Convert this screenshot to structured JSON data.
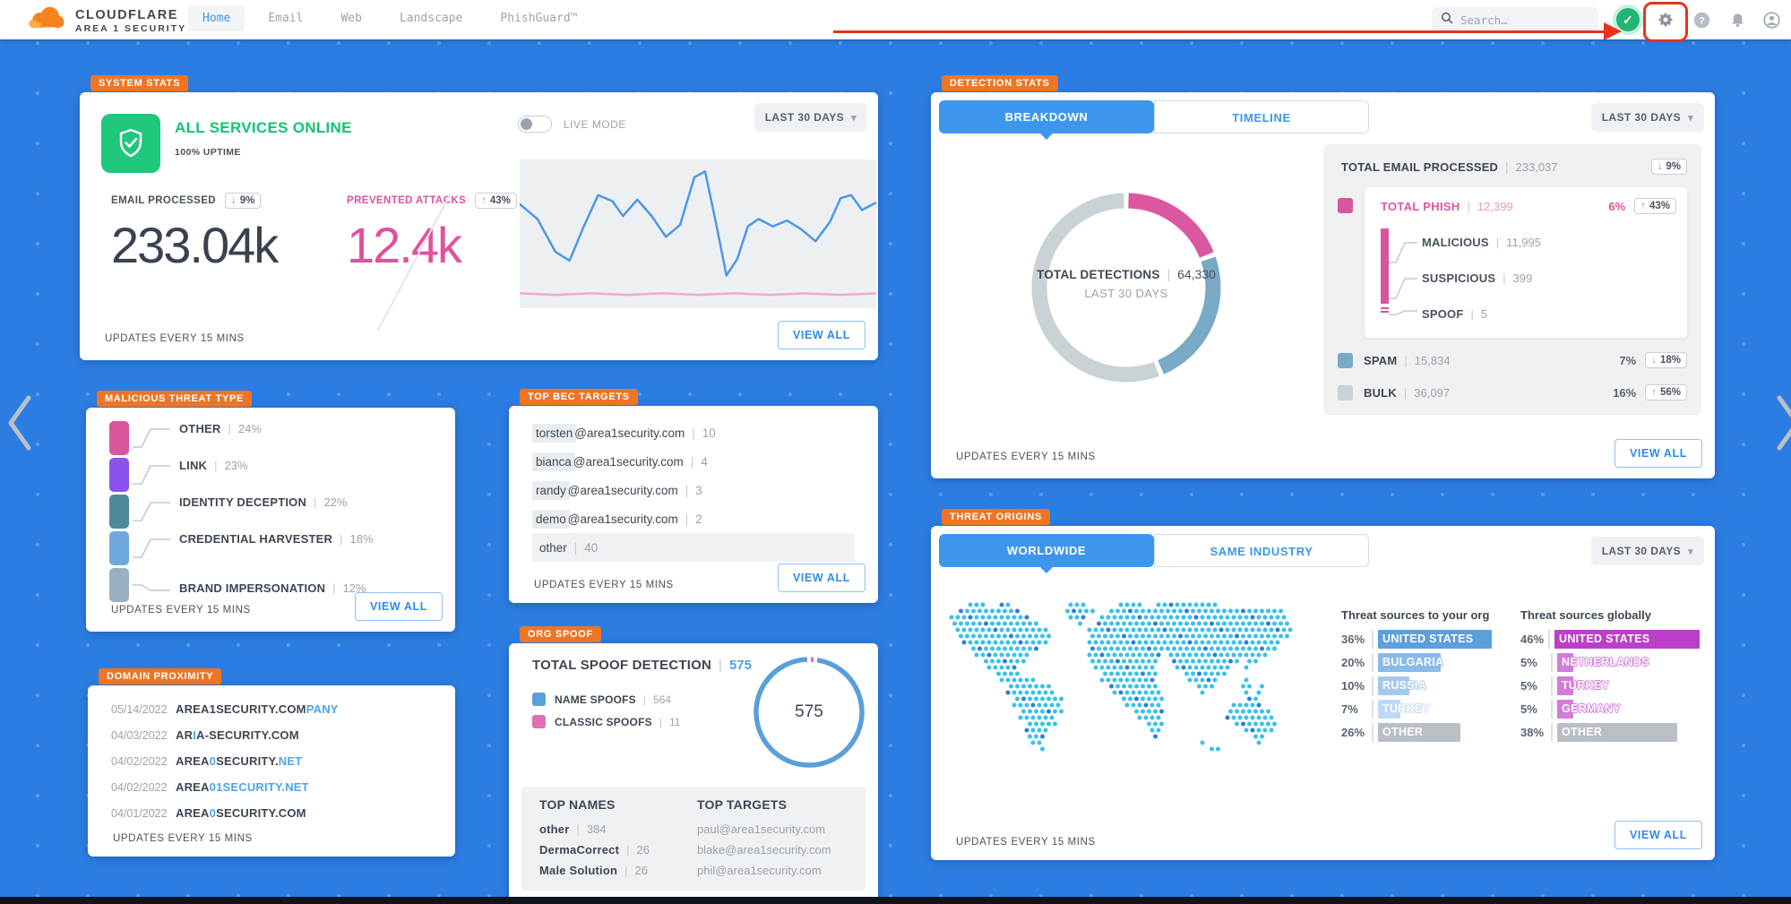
{
  "topbar": {
    "logo_line1": "CLOUDFLARE",
    "logo_line2": "AREA 1 SECURITY",
    "nav": [
      {
        "label": "Home",
        "active": true
      },
      {
        "label": "Email",
        "active": false
      },
      {
        "label": "Web",
        "active": false
      },
      {
        "label": "Landscape",
        "active": false
      },
      {
        "label": "PhishGuard™",
        "active": false
      }
    ],
    "search_placeholder": "Search…",
    "icons": {
      "search": "magnifier-icon",
      "secure": "shield-check-icon",
      "settings": "gear-icon",
      "help": "question-circle-icon",
      "notifications": "bell-icon",
      "account": "user-icon"
    }
  },
  "annotation": {
    "type": "red-underline-arrow-and-box",
    "color": "#E8321E",
    "target": "gear-icon"
  },
  "page": {
    "range_label": "LAST 30 DAYS",
    "updates_label": "UPDATES EVERY 15 MINS",
    "view_all_label": "VIEW ALL"
  },
  "system_stats": {
    "badge": "SYSTEM STATS",
    "status_text": "ALL SERVICES ONLINE",
    "uptime_text": "100% UPTIME",
    "live_mode_label": "LIVE MODE",
    "live_mode_on": false,
    "metrics": [
      {
        "label": "EMAIL PROCESSED",
        "direction": "down",
        "delta": "9%",
        "value": "233.04k",
        "label_color": "#4A525E",
        "value_color": "#3A4250"
      },
      {
        "label": "PREVENTED ATTACKS",
        "direction": "up",
        "delta": "43%",
        "value": "12.4k",
        "label_color": "#E0519E",
        "value_color": "#E0519E"
      }
    ],
    "sparkline": {
      "type": "line",
      "series": [
        {
          "name": "email processed",
          "color": "#4D96E8",
          "points": [
            [
              0,
              30
            ],
            [
              5,
              40
            ],
            [
              10,
              62
            ],
            [
              14,
              68
            ],
            [
              18,
              45
            ],
            [
              22,
              24
            ],
            [
              26,
              28
            ],
            [
              29,
              38
            ],
            [
              33,
              27
            ],
            [
              37,
              38
            ],
            [
              41,
              52
            ],
            [
              45,
              44
            ],
            [
              49,
              12
            ],
            [
              52,
              8
            ],
            [
              55,
              42
            ],
            [
              58,
              78
            ],
            [
              61,
              67
            ],
            [
              64,
              45
            ],
            [
              67,
              40
            ],
            [
              71,
              45
            ],
            [
              75,
              41
            ],
            [
              79,
              47
            ],
            [
              83,
              55
            ],
            [
              87,
              42
            ],
            [
              90,
              26
            ],
            [
              93,
              24
            ],
            [
              96,
              34
            ],
            [
              100,
              29
            ]
          ]
        },
        {
          "name": "prevented attacks",
          "color": "#EFA8CE",
          "points": [
            [
              0,
              90
            ],
            [
              10,
              91
            ],
            [
              20,
              90
            ],
            [
              30,
              91
            ],
            [
              40,
              90
            ],
            [
              50,
              91
            ],
            [
              60,
              90
            ],
            [
              70,
              91
            ],
            [
              80,
              90
            ],
            [
              90,
              91
            ],
            [
              100,
              90
            ]
          ]
        }
      ]
    }
  },
  "malicious_threat_type": {
    "badge": "MALICIOUS THREAT TYPE",
    "items": [
      {
        "label": "OTHER",
        "pct": "24%",
        "color": "#D9559E"
      },
      {
        "label": "LINK",
        "pct": "23%",
        "color": "#8B52F0"
      },
      {
        "label": "IDENTITY DECEPTION",
        "pct": "22%",
        "color": "#4E8A9C"
      },
      {
        "label": "CREDENTIAL HARVESTER",
        "pct": "18%",
        "color": "#6FA8DC"
      },
      {
        "label": "BRAND IMPERSONATION",
        "pct": "12%",
        "color": "#9AAFC2"
      }
    ]
  },
  "domain_proximity": {
    "badge": "DOMAIN PROXIMITY",
    "rows": [
      {
        "date": "05/14/2022",
        "parts": [
          {
            "t": "AREA1SECURITY.COM",
            "hl": false
          },
          {
            "t": "PANY",
            "hl": true
          }
        ]
      },
      {
        "date": "04/03/2022",
        "parts": [
          {
            "t": "AR",
            "hl": false
          },
          {
            "t": "I",
            "hl": true
          },
          {
            "t": "A-SECURITY.COM",
            "hl": false
          }
        ]
      },
      {
        "date": "04/02/2022",
        "parts": [
          {
            "t": "AREA",
            "hl": false
          },
          {
            "t": "0",
            "hl": true
          },
          {
            "t": "SECURITY.",
            "hl": false
          },
          {
            "t": "NET",
            "hl": true
          }
        ]
      },
      {
        "date": "04/02/2022",
        "parts": [
          {
            "t": "AREA",
            "hl": false
          },
          {
            "t": "01SECURITY.NET",
            "hl": true
          }
        ]
      },
      {
        "date": "04/01/2022",
        "parts": [
          {
            "t": "AREA",
            "hl": false
          },
          {
            "t": "0",
            "hl": true
          },
          {
            "t": "SECURITY.COM",
            "hl": false
          }
        ]
      }
    ]
  },
  "top_bec_targets": {
    "badge": "TOP BEC TARGETS",
    "rows": [
      {
        "name": "torsten",
        "rest": "@area1security.com",
        "count": "10",
        "fullrow": false
      },
      {
        "name": "bianca",
        "rest": "@area1security.com",
        "count": "4",
        "fullrow": false
      },
      {
        "name": "randy",
        "rest": "@area1security.com",
        "count": "3",
        "fullrow": false
      },
      {
        "name": "demo",
        "rest": "@area1security.com",
        "count": "2",
        "fullrow": false
      },
      {
        "name": "other",
        "rest": "",
        "count": "40",
        "fullrow": true
      }
    ]
  },
  "org_spoof": {
    "badge": "ORG SPOOF",
    "title": "TOTAL SPOOF DETECTION",
    "total": "575",
    "legend": [
      {
        "label": "NAME SPOOFS",
        "count": "564",
        "color": "#5B9FD9"
      },
      {
        "label": "CLASSIC SPOOFS",
        "count": "11",
        "color": "#E06FB4"
      }
    ],
    "donut": {
      "type": "pie",
      "center_value": "575",
      "segments": [
        {
          "name": "classic spoofs",
          "value": 11,
          "color": "#E06FB4"
        },
        {
          "name": "name spoofs",
          "value": 564,
          "color": "#5B9FD9"
        }
      ]
    },
    "top_names_heading": "TOP NAMES",
    "top_names": [
      {
        "name": "other",
        "count": "384"
      },
      {
        "name": "DermaCorrect",
        "count": "26"
      },
      {
        "name": "Male Solution",
        "count": "26"
      }
    ],
    "top_targets_heading": "TOP TARGETS",
    "top_targets": [
      "paul@area1security.com",
      "blake@area1security.com",
      "phil@area1security.com"
    ]
  },
  "detection_stats": {
    "badge": "DETECTION STATS",
    "tabs": [
      {
        "label": "BREAKDOWN",
        "active": true
      },
      {
        "label": "TIMELINE",
        "active": false
      }
    ],
    "donut": {
      "type": "pie",
      "center_label": "TOTAL DETECTIONS",
      "center_value": "64,330",
      "center_sub": "LAST 30 DAYS",
      "segments": [
        {
          "name": "total phish",
          "value": 12399,
          "color": "#DB579F"
        },
        {
          "name": "spam",
          "value": 15834,
          "color": "#78A9C6"
        },
        {
          "name": "bulk",
          "value": 36097,
          "color": "#C9D2D5"
        }
      ]
    },
    "summary": {
      "total_label": "TOTAL EMAIL PROCESSED",
      "total_value": "233,037",
      "total_direction": "down",
      "total_delta": "9%",
      "phish": {
        "label": "TOTAL PHISH",
        "value": "12,399",
        "pct": "6%",
        "direction": "up",
        "delta": "43%",
        "color": "#D9559E",
        "children": [
          {
            "label": "MALICIOUS",
            "value": "11,995"
          },
          {
            "label": "SUSPICIOUS",
            "value": "399"
          },
          {
            "label": "SPOOF",
            "value": "5"
          }
        ]
      },
      "rows": [
        {
          "label": "SPAM",
          "value": "15,834",
          "pct": "7%",
          "direction": "down",
          "delta": "18%",
          "color": "#78A9C6"
        },
        {
          "label": "BULK",
          "value": "36,097",
          "pct": "16%",
          "direction": "up",
          "delta": "56%",
          "color": "#C9D2D5"
        }
      ]
    }
  },
  "threat_origins": {
    "badge": "THREAT ORIGINS",
    "tabs": [
      {
        "label": "WORLDWIDE",
        "active": true
      },
      {
        "label": "SAME INDUSTRY",
        "active": false
      }
    ],
    "org_heading": "Threat sources to your org",
    "org_sources": [
      {
        "pct": 36,
        "label": "UNITED STATES",
        "color": "#5C9FDD"
      },
      {
        "pct": 20,
        "label": "BULGARIA",
        "color": "#8ABAE8"
      },
      {
        "pct": 10,
        "label": "RUSSIA",
        "color": "#A3C8EF"
      },
      {
        "pct": 7,
        "label": "TURKEY",
        "color": "#BFD9F5"
      },
      {
        "pct": 26,
        "label": "OTHER",
        "color": "#B9BFC5"
      }
    ],
    "global_heading": "Threat sources globally",
    "global_sources": [
      {
        "pct": 46,
        "label": "UNITED STATES",
        "color": "#BB3FC9"
      },
      {
        "pct": 5,
        "label": "NETHERLANDS",
        "color": "#D27BDA"
      },
      {
        "pct": 5,
        "label": "TURKEY",
        "color": "#D27BDA"
      },
      {
        "pct": 5,
        "label": "GERMANY",
        "color": "#D27BDA"
      },
      {
        "pct": 38,
        "label": "OTHER",
        "color": "#B9BFC5"
      }
    ],
    "map_rows": [
      "....###..##.........###.....####..##########...........",
      "..##########.......#####..############################..",
      ".#############......###..##############################.",
      ".##############......#..###############################.",
      "..###############......#################################",
      "..###############......################################.",
      "...##############......###############################..",
      "....###########........##############################...",
      ".....#########.........############.################....",
      "......#######..........###########..###########.##......",
      ".......#####............##########...#########..#.......",
      "........####.............#########....#######...........",
      ".........######..........#########.....#####....#......",
      "..........#######.........########......###....##.#....",
      "..........########.........########......#......#.#....",
      "...........########.........#######.............##.....",
      "...........########..........######...........#####....",
      "............#######...........#####..........#######...",
      "............######.............####..........########..",
      ".............#####..............###...........#######..",
      ".............####................##.............#####..",
      ".............###.................#...............##....",
      "..............##.........................#........#....",
      "...............#..........................##..........."
    ]
  }
}
